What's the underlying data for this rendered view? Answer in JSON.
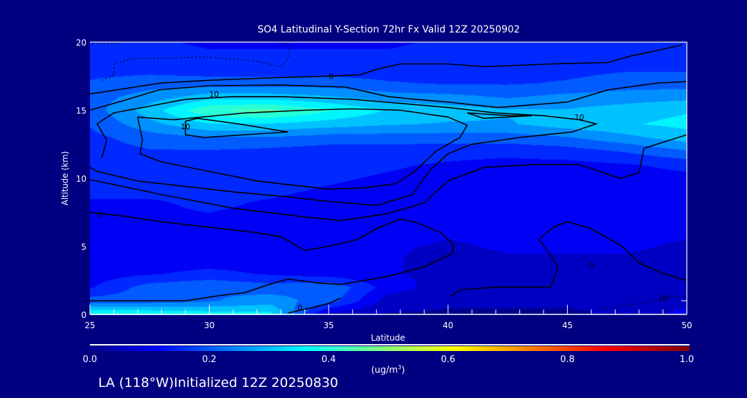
{
  "chart_data": {
    "type": "heatmap",
    "title": "SO4 Latitudinal Y-Section 72hr  Fx Valid 12Z 20250902",
    "xlabel": "Latitude",
    "ylabel": "Altitude (km)",
    "xlim": [
      25,
      50
    ],
    "ylim": [
      0,
      20
    ],
    "xticks": [
      "25",
      "30",
      "35",
      "40",
      "45",
      "50"
    ],
    "yticks": [
      "0",
      "5",
      "10",
      "15",
      "20"
    ],
    "colorbar": {
      "ticks": [
        "0.0",
        "0.2",
        "0.4",
        "0.6",
        "0.8",
        "1.0"
      ],
      "units_label": "(ug/m",
      "units_sup": "3",
      "units_close": ")",
      "range": [
        0,
        1
      ],
      "colormap": "jet"
    },
    "grid_lat": [
      25,
      27.5,
      30,
      32.5,
      35,
      37.5,
      40,
      42.5,
      45,
      47.5,
      50
    ],
    "grid_alt": [
      0,
      1,
      2,
      3,
      4,
      5,
      6,
      7,
      8,
      9,
      10,
      11,
      12,
      13,
      14,
      15,
      16,
      17,
      18,
      19,
      20
    ],
    "values": [
      [
        0.38,
        0.38,
        0.36,
        0.35,
        0.05,
        0.02,
        0.02,
        0.02,
        0.02,
        0.03,
        0.1
      ],
      [
        0.2,
        0.2,
        0.22,
        0.25,
        0.2,
        0.05,
        0.03,
        0.03,
        0.03,
        0.03,
        0.05
      ],
      [
        0.12,
        0.2,
        0.22,
        0.2,
        0.22,
        0.1,
        0.05,
        0.04,
        0.04,
        0.04,
        0.04
      ],
      [
        0.1,
        0.12,
        0.14,
        0.12,
        0.1,
        0.08,
        0.06,
        0.05,
        0.05,
        0.05,
        0.05
      ],
      [
        0.1,
        0.1,
        0.1,
        0.1,
        0.08,
        0.08,
        0.06,
        0.07,
        0.07,
        0.07,
        0.06
      ],
      [
        0.1,
        0.1,
        0.1,
        0.1,
        0.08,
        0.08,
        0.07,
        0.08,
        0.08,
        0.08,
        0.07
      ],
      [
        0.12,
        0.12,
        0.11,
        0.1,
        0.1,
        0.09,
        0.08,
        0.08,
        0.08,
        0.08,
        0.08
      ],
      [
        0.12,
        0.12,
        0.12,
        0.11,
        0.1,
        0.1,
        0.09,
        0.09,
        0.09,
        0.09,
        0.09
      ],
      [
        0.12,
        0.12,
        0.13,
        0.12,
        0.11,
        0.1,
        0.1,
        0.1,
        0.1,
        0.1,
        0.1
      ],
      [
        0.13,
        0.13,
        0.13,
        0.13,
        0.12,
        0.11,
        0.1,
        0.1,
        0.1,
        0.1,
        0.1
      ],
      [
        0.13,
        0.14,
        0.14,
        0.14,
        0.13,
        0.12,
        0.11,
        0.1,
        0.1,
        0.1,
        0.11
      ],
      [
        0.14,
        0.15,
        0.15,
        0.15,
        0.14,
        0.13,
        0.12,
        0.11,
        0.11,
        0.12,
        0.14
      ],
      [
        0.15,
        0.17,
        0.17,
        0.16,
        0.15,
        0.15,
        0.14,
        0.14,
        0.15,
        0.18,
        0.22
      ],
      [
        0.16,
        0.2,
        0.22,
        0.22,
        0.2,
        0.2,
        0.2,
        0.2,
        0.22,
        0.26,
        0.3
      ],
      [
        0.18,
        0.26,
        0.32,
        0.32,
        0.3,
        0.28,
        0.27,
        0.27,
        0.3,
        0.32,
        0.34
      ],
      [
        0.2,
        0.3,
        0.42,
        0.44,
        0.38,
        0.32,
        0.3,
        0.28,
        0.28,
        0.3,
        0.32
      ],
      [
        0.2,
        0.25,
        0.3,
        0.3,
        0.28,
        0.25,
        0.24,
        0.22,
        0.24,
        0.25,
        0.26
      ],
      [
        0.18,
        0.2,
        0.2,
        0.2,
        0.2,
        0.18,
        0.17,
        0.17,
        0.18,
        0.2,
        0.2
      ],
      [
        0.16,
        0.16,
        0.15,
        0.15,
        0.15,
        0.15,
        0.15,
        0.15,
        0.16,
        0.17,
        0.17
      ],
      [
        0.15,
        0.14,
        0.13,
        0.13,
        0.13,
        0.13,
        0.14,
        0.14,
        0.14,
        0.15,
        0.15
      ],
      [
        0.14,
        0.13,
        0.12,
        0.12,
        0.12,
        0.12,
        0.13,
        0.13,
        0.13,
        0.14,
        0.14
      ]
    ],
    "contours": [
      {
        "label": "0",
        "label_at": [
          35.1,
          17.5
        ],
        "dotted": false,
        "points": [
          [
            25,
            16.2
          ],
          [
            26.5,
            16.6
          ],
          [
            28,
            17.0
          ],
          [
            30,
            17.2
          ],
          [
            33,
            17.4
          ],
          [
            35,
            17.5
          ],
          [
            36.3,
            17.6
          ],
          [
            37,
            18.0
          ],
          [
            38,
            18.4
          ],
          [
            40,
            18.4
          ],
          [
            41.5,
            18.2
          ],
          [
            44.4,
            18.4
          ],
          [
            46.7,
            18.5
          ],
          [
            47.7,
            19.0
          ],
          [
            48.8,
            19.4
          ],
          [
            49.8,
            19.8
          ]
        ]
      },
      {
        "label": "",
        "label_at": null,
        "dotted": false,
        "points": [
          [
            25,
            15.0
          ],
          [
            26.4,
            15.7
          ],
          [
            27.9,
            16.5
          ],
          [
            30,
            16.8
          ],
          [
            33,
            16.85
          ],
          [
            35.7,
            16.7
          ],
          [
            37.5,
            16.0
          ],
          [
            38.6,
            15.8
          ],
          [
            40,
            15.6
          ],
          [
            42.1,
            15.2
          ],
          [
            45,
            15.6
          ],
          [
            46.7,
            16.5
          ],
          [
            48.8,
            17.0
          ],
          [
            50,
            17.1
          ]
        ]
      },
      {
        "label": "10",
        "label_at": [
          30.2,
          16.2
        ],
        "dotted": false,
        "points": [
          [
            25.5,
            11.5
          ],
          [
            25.7,
            12.8
          ],
          [
            25.3,
            14.0
          ],
          [
            26,
            14.8
          ],
          [
            27.5,
            15.3
          ],
          [
            29,
            15.8
          ],
          [
            31,
            16.0
          ],
          [
            33,
            16.0
          ],
          [
            36,
            15.8
          ],
          [
            38,
            15.5
          ],
          [
            40,
            15.2
          ],
          [
            42,
            14.8
          ],
          [
            44,
            14.6
          ],
          [
            45.5,
            14.3
          ],
          [
            46.2,
            14.0
          ],
          [
            45.2,
            13.4
          ],
          [
            43,
            13.0
          ],
          [
            41,
            12.5
          ],
          [
            40,
            11.8
          ],
          [
            39.2,
            10.5
          ],
          [
            38.5,
            8.8
          ],
          [
            37,
            8.0
          ],
          [
            35,
            8.3
          ],
          [
            33.5,
            8.6
          ],
          [
            31,
            9.0
          ],
          [
            29,
            9.4
          ],
          [
            27,
            9.8
          ],
          [
            25.3,
            10.5
          ],
          [
            25,
            10.8
          ]
        ]
      },
      {
        "label": "10",
        "label_at": [
          45.5,
          14.5
        ],
        "dotted": false,
        "points": [
          [
            27,
            14.5
          ],
          [
            27.2,
            12.8
          ],
          [
            27.1,
            11.8
          ],
          [
            28,
            11.2
          ],
          [
            30,
            10.5
          ],
          [
            32,
            9.8
          ],
          [
            33.5,
            9.5
          ],
          [
            35,
            9.2
          ],
          [
            36.5,
            9.3
          ],
          [
            37.8,
            9.6
          ],
          [
            38.6,
            10.5
          ],
          [
            39.5,
            12.0
          ],
          [
            40.5,
            13.0
          ],
          [
            40.8,
            13.9
          ],
          [
            40,
            14.5
          ],
          [
            38,
            15.0
          ],
          [
            36,
            15.1
          ],
          [
            34,
            15.0
          ],
          [
            31.5,
            14.8
          ],
          [
            28.5,
            14.3
          ],
          [
            27,
            14.5
          ]
        ]
      },
      {
        "label": "10",
        "label_at": [
          29.0,
          13.8
        ],
        "dotted": false,
        "points": [
          [
            29.0,
            14.2
          ],
          [
            29.0,
            13.2
          ],
          [
            29.8,
            13.0
          ],
          [
            31.5,
            13.2
          ],
          [
            33.3,
            13.4
          ],
          [
            31.2,
            14.0
          ],
          [
            29.5,
            14.4
          ],
          [
            29.0,
            14.2
          ]
        ]
      },
      {
        "label": "",
        "label_at": null,
        "dotted": false,
        "points": [
          [
            40.8,
            14.8
          ],
          [
            42.6,
            14.6
          ],
          [
            43.5,
            14.6
          ],
          [
            41.5,
            14.4
          ],
          [
            40.8,
            14.8
          ]
        ]
      },
      {
        "label": "",
        "label_at": null,
        "dotted": false,
        "points": [
          [
            50,
            13.2
          ],
          [
            48.2,
            12.2
          ],
          [
            48.0,
            10.4
          ],
          [
            47.2,
            10.0
          ],
          [
            45.5,
            11.0
          ],
          [
            43.5,
            11.0
          ],
          [
            41.5,
            10.8
          ],
          [
            40,
            9.8
          ],
          [
            39.0,
            8.2
          ],
          [
            37.5,
            7.4
          ],
          [
            35.5,
            6.9
          ],
          [
            33.8,
            7.2
          ],
          [
            31,
            7.8
          ],
          [
            28,
            8.8
          ],
          [
            25,
            9.9
          ]
        ]
      },
      {
        "label": "0",
        "label_at": [
          25.4,
          7.3
        ],
        "dotted": false,
        "points": [
          [
            25,
            7.5
          ],
          [
            26.5,
            7.2
          ],
          [
            28,
            6.8
          ],
          [
            30,
            6.4
          ],
          [
            32,
            6.0
          ],
          [
            33,
            5.7
          ],
          [
            34,
            4.7
          ],
          [
            35,
            5.0
          ],
          [
            36.2,
            5.5
          ],
          [
            37,
            6.3
          ],
          [
            38,
            7.0
          ],
          [
            38.6,
            6.8
          ],
          [
            39.7,
            6.0
          ],
          [
            40.2,
            5.2
          ],
          [
            40.2,
            4.5
          ],
          [
            39,
            3.5
          ],
          [
            37.5,
            2.8
          ],
          [
            36.5,
            2.5
          ],
          [
            35.5,
            2.2
          ],
          [
            34.6,
            2.3
          ],
          [
            33.3,
            2.6
          ],
          [
            32.5,
            2.2
          ],
          [
            31.5,
            1.6
          ],
          [
            30.5,
            1.4
          ],
          [
            29,
            1.0
          ],
          [
            27,
            1.0
          ],
          [
            25,
            1.0
          ]
        ]
      },
      {
        "label": "0",
        "label_at": [
          46.0,
          3.6
        ],
        "dotted": false,
        "points": [
          [
            50,
            2.5
          ],
          [
            49,
            3.0
          ],
          [
            48,
            3.8
          ],
          [
            47.3,
            5.0
          ],
          [
            46,
            6.3
          ],
          [
            45,
            6.8
          ],
          [
            44.4,
            6.4
          ],
          [
            43.8,
            5.5
          ],
          [
            44.2,
            4.6
          ],
          [
            44.6,
            3.5
          ],
          [
            44.3,
            2.0
          ],
          [
            42,
            2.0
          ],
          [
            40.5,
            1.8
          ],
          [
            40.1,
            1.3
          ]
        ]
      },
      {
        "label": "10",
        "label_at": [
          49.0,
          1.2
        ],
        "dotted": true,
        "points": [
          [
            46.5,
            0.4
          ],
          [
            48,
            0.8
          ],
          [
            50,
            1.4
          ]
        ]
      },
      {
        "label": "0",
        "label_at": [
          33.8,
          0.5
        ],
        "dotted": false,
        "points": [
          [
            33.3,
            0.1
          ],
          [
            34.3,
            0.5
          ],
          [
            35,
            0.8
          ],
          [
            35.5,
            1.2
          ]
        ]
      },
      {
        "label": "",
        "label_at": null,
        "dotted": true,
        "points": [
          [
            25.1,
            19.9
          ],
          [
            26.2,
            19.9
          ],
          [
            26.5,
            20.2
          ]
        ]
      },
      {
        "label": "",
        "label_at": null,
        "dotted": true,
        "points": [
          [
            25.5,
            17.2
          ],
          [
            26.0,
            17.6
          ],
          [
            26.0,
            18.4
          ],
          [
            26.8,
            18.8
          ],
          [
            30,
            18.9
          ],
          [
            32,
            18.6
          ],
          [
            33.0,
            18.2
          ],
          [
            33.3,
            18.8
          ],
          [
            33.4,
            19.8
          ],
          [
            32.9,
            20.0
          ]
        ]
      }
    ]
  },
  "footer": "LA (118°W)Initialized 12Z 20250830"
}
